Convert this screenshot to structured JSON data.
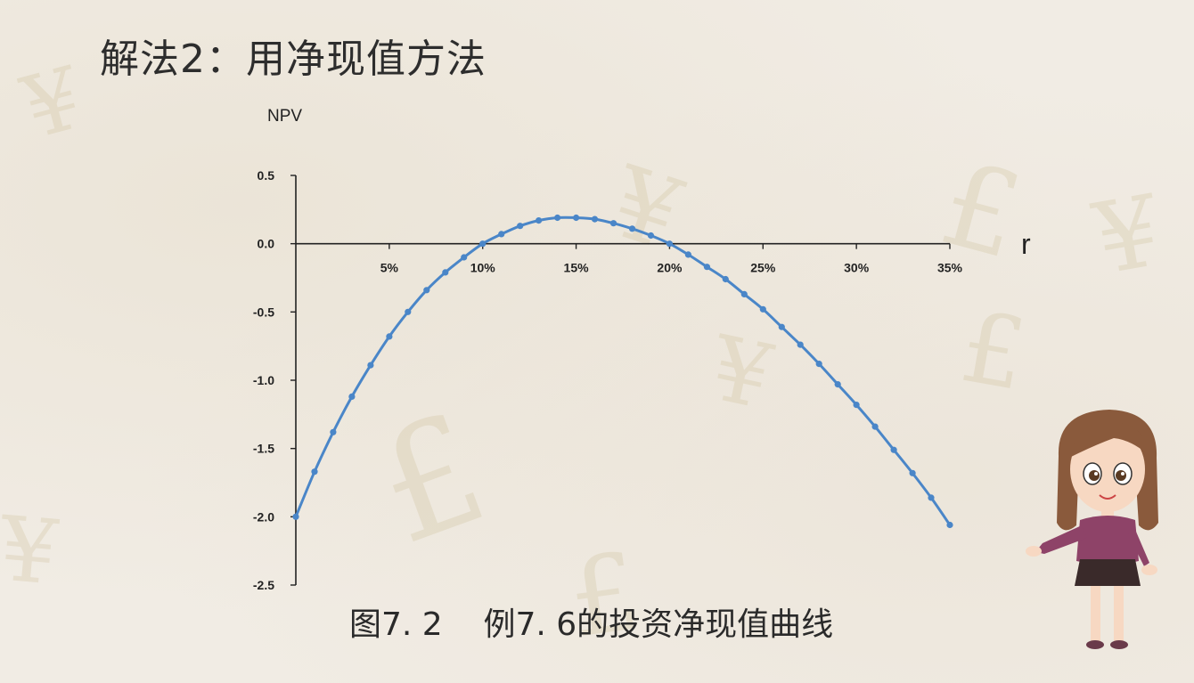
{
  "slide": {
    "title": "解法2：用净现值方法",
    "caption": "图7. 2    例7. 6的投资净现值曲线"
  },
  "colors": {
    "series": "#4a86c8",
    "axis": "#222222",
    "text": "#2d2d2d"
  },
  "chart_data": {
    "type": "line",
    "ylabel": "NPV",
    "xlabel": "r",
    "xlim": [
      0,
      35
    ],
    "ylim": [
      -2.5,
      0.5
    ],
    "y_ticks": [
      0.5,
      0.0,
      -0.5,
      -1.0,
      -1.5,
      -2.0,
      -2.5
    ],
    "y_tick_labels": [
      "0.5",
      "0.0",
      "-0.5",
      "-1.0",
      "-1.5",
      "-2.0",
      "-2.5"
    ],
    "x_ticks": [
      5,
      10,
      15,
      20,
      25,
      30,
      35
    ],
    "x_tick_labels": [
      "5%",
      "10%",
      "15%",
      "20%",
      "25%",
      "30%",
      "35%"
    ],
    "grid": false,
    "series": [
      {
        "color": "#4a86c8",
        "x": [
          0,
          1,
          2,
          3,
          4,
          5,
          6,
          7,
          8,
          9,
          10,
          11,
          12,
          13,
          14,
          15,
          16,
          17,
          18,
          19,
          20,
          21,
          22,
          23,
          24,
          25,
          26,
          27,
          28,
          29,
          30,
          31,
          32,
          33,
          34,
          35
        ],
        "values": [
          -2.0,
          -1.67,
          -1.38,
          -1.12,
          -0.89,
          -0.68,
          -0.5,
          -0.34,
          -0.21,
          -0.1,
          0.0,
          0.07,
          0.13,
          0.17,
          0.19,
          0.19,
          0.18,
          0.15,
          0.11,
          0.06,
          0.0,
          -0.08,
          -0.17,
          -0.26,
          -0.37,
          -0.48,
          -0.61,
          -0.74,
          -0.88,
          -1.03,
          -1.18,
          -1.34,
          -1.51,
          -1.68,
          -1.86,
          -2.06
        ]
      }
    ]
  }
}
